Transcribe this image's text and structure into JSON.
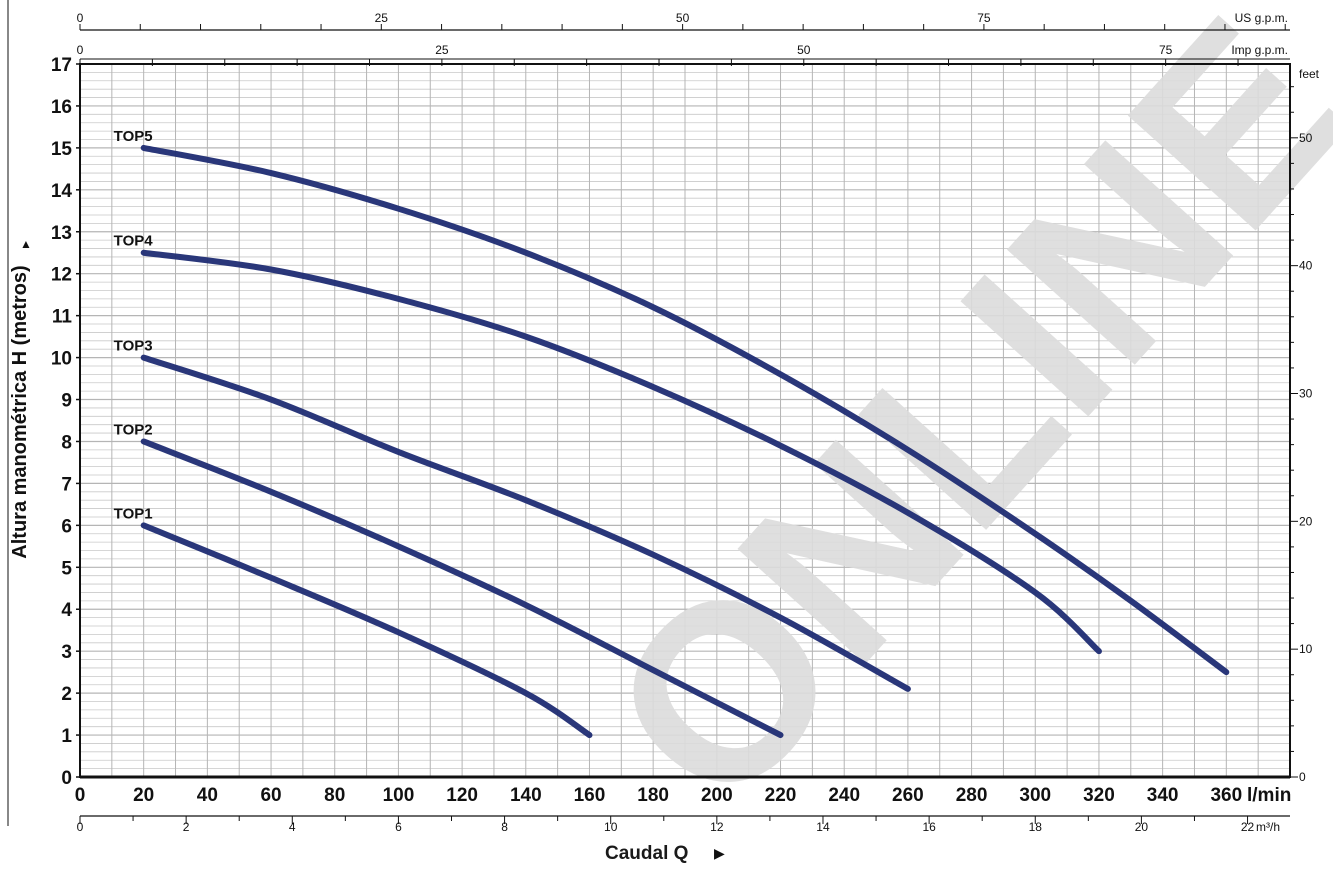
{
  "chart_data": {
    "type": "line",
    "ylabel": "Altura manométrica H (metros)",
    "ylabel_arrow": "▲",
    "xlabel": "Caudal Q",
    "xlabel_arrow": "▶",
    "watermark": "ONLINE",
    "x_unit": "l/min",
    "xlim": [
      0,
      380
    ],
    "ylim": [
      0,
      17
    ],
    "y_ticks": [
      0,
      1,
      2,
      3,
      4,
      5,
      6,
      7,
      8,
      9,
      10,
      11,
      12,
      13,
      14,
      15,
      16,
      17
    ],
    "x_ticks": [
      0,
      20,
      40,
      60,
      80,
      100,
      120,
      140,
      160,
      180,
      200,
      220,
      240,
      260,
      280,
      300,
      320,
      340,
      360
    ],
    "grid": true,
    "secondary_axes": {
      "us_gpm": {
        "label": "US g.p.m.",
        "ticks": [
          0,
          25,
          50,
          75
        ]
      },
      "imp_gpm": {
        "label": "Imp g.p.m.",
        "ticks": [
          0,
          25,
          50,
          75
        ]
      },
      "m3h": {
        "label": "m³/h",
        "ticks": [
          0,
          2,
          4,
          6,
          8,
          10,
          12,
          14,
          16,
          18,
          20,
          22
        ]
      },
      "feet": {
        "label": "feet",
        "ticks": [
          0,
          10,
          20,
          30,
          40,
          50
        ]
      }
    },
    "series": [
      {
        "name": "TOP1",
        "x": [
          20,
          60,
          100,
          140,
          160
        ],
        "y": [
          6,
          4.75,
          3.45,
          2.0,
          1.0
        ]
      },
      {
        "name": "TOP2",
        "x": [
          20,
          60,
          100,
          140,
          180,
          220
        ],
        "y": [
          8,
          6.8,
          5.5,
          4.1,
          2.55,
          1.0
        ]
      },
      {
        "name": "TOP3",
        "x": [
          20,
          60,
          100,
          140,
          180,
          220,
          260
        ],
        "y": [
          10,
          9.0,
          7.75,
          6.6,
          5.3,
          3.8,
          2.1
        ]
      },
      {
        "name": "TOP4",
        "x": [
          20,
          60,
          100,
          140,
          180,
          220,
          260,
          300,
          320
        ],
        "y": [
          12.5,
          12.1,
          11.4,
          10.5,
          9.3,
          7.9,
          6.3,
          4.4,
          3.0
        ]
      },
      {
        "name": "TOP5",
        "x": [
          20,
          60,
          100,
          140,
          180,
          220,
          260,
          300,
          330,
          360
        ],
        "y": [
          15,
          14.4,
          13.55,
          12.5,
          11.2,
          9.6,
          7.8,
          5.8,
          4.2,
          2.5
        ]
      }
    ],
    "colors": {
      "curve": "#1f2c73",
      "grid": "#c9c9c9",
      "frame": "#111111",
      "watermark": "#dcdcdc"
    }
  }
}
